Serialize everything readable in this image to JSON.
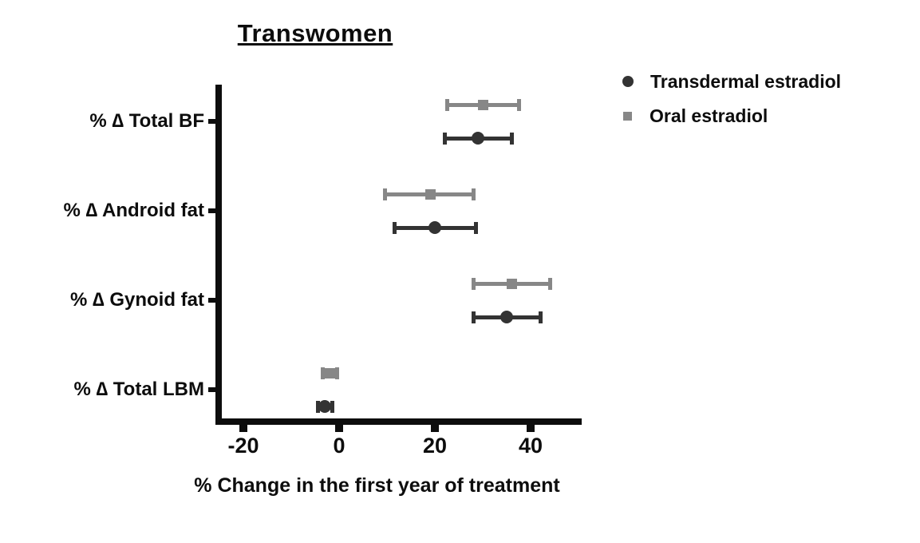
{
  "title": "Transwomen",
  "legend": {
    "position": "right-top",
    "items": [
      {
        "label": "Transdermal estradiol",
        "marker": "circle",
        "color": "#333333"
      },
      {
        "label": "Oral estradiol",
        "marker": "square",
        "color": "#878787"
      }
    ]
  },
  "chart_data": {
    "type": "scatter",
    "subtype": "horizontal-point-estimates-with-error-bars",
    "title": "Transwomen",
    "xlabel": "% Change in the first year of treatment",
    "ylabel": "",
    "categories": [
      "% ∆ Total BF",
      "% ∆ Android fat",
      "% ∆ Gynoid fat",
      "% ∆ Total LBM"
    ],
    "xticks": [
      -20,
      0,
      20,
      40
    ],
    "xlim": [
      -25.5,
      50.5
    ],
    "grid": false,
    "legend_position": "upper right, outside plot",
    "series": [
      {
        "name": "Transdermal estradiol",
        "marker": "circle",
        "color": "#333333",
        "values": [
          29,
          20,
          35,
          -3
        ],
        "ci_low": [
          22,
          11.5,
          28,
          -4.5
        ],
        "ci_high": [
          36,
          28.5,
          42,
          -1.5
        ]
      },
      {
        "name": "Oral estradiol",
        "marker": "square",
        "color": "#878787",
        "values": [
          30,
          19,
          36,
          -2
        ],
        "ci_low": [
          22.5,
          9.5,
          28,
          -3.5
        ],
        "ci_high": [
          37.5,
          28,
          44,
          -0.5
        ]
      }
    ]
  }
}
